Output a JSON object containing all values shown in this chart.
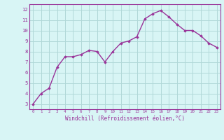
{
  "x": [
    0,
    1,
    2,
    3,
    4,
    5,
    6,
    7,
    8,
    9,
    10,
    11,
    12,
    13,
    14,
    15,
    16,
    17,
    18,
    19,
    20,
    21,
    22,
    23
  ],
  "y": [
    3.0,
    4.0,
    4.5,
    6.5,
    7.5,
    7.5,
    7.7,
    8.1,
    8.0,
    7.0,
    8.0,
    8.8,
    9.0,
    9.4,
    11.1,
    11.6,
    11.9,
    11.3,
    10.6,
    10.0,
    10.0,
    9.5,
    8.8,
    8.4
  ],
  "line_color": "#993399",
  "marker": "D",
  "marker_size": 1.8,
  "bg_color": "#d8f5f5",
  "grid_color": "#b0d8d8",
  "xlabel": "Windchill (Refroidissement éolien,°C)",
  "xlabel_color": "#993399",
  "tick_color": "#993399",
  "spine_color": "#993399",
  "xlim": [
    -0.5,
    23.5
  ],
  "ylim": [
    2.5,
    12.5
  ],
  "yticks": [
    3,
    4,
    5,
    6,
    7,
    8,
    9,
    10,
    11,
    12
  ],
  "xticks": [
    0,
    1,
    2,
    3,
    4,
    5,
    6,
    7,
    8,
    9,
    10,
    11,
    12,
    13,
    14,
    15,
    16,
    17,
    18,
    19,
    20,
    21,
    22,
    23
  ],
  "line_width": 1.0
}
